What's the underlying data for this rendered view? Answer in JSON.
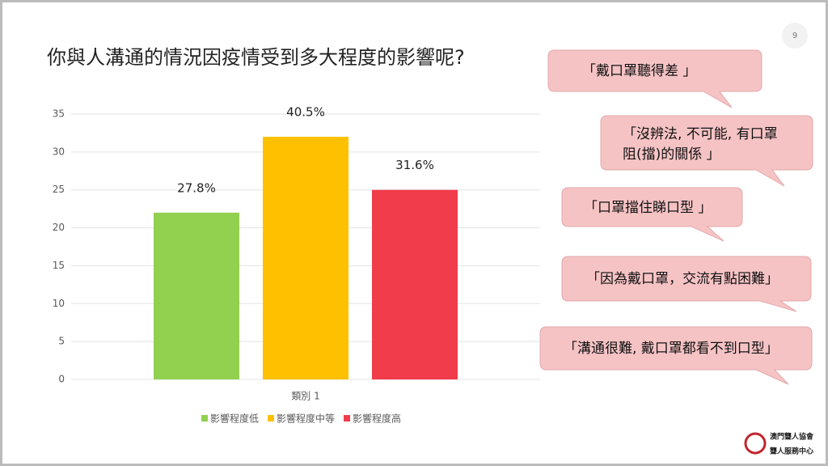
{
  "page_number": "9",
  "chart_data": {
    "type": "bar",
    "title": "你與人溝通的情況因疫情受到多大程度的影響呢?",
    "categories": [
      "類別 1"
    ],
    "series": [
      {
        "name": "影響程度低",
        "color": "#92d050",
        "values": [
          22
        ],
        "value_labels": [
          "27.8%"
        ]
      },
      {
        "name": "影響程度中等",
        "color": "#ffc000",
        "values": [
          32
        ],
        "value_labels": [
          "40.5%"
        ]
      },
      {
        "name": "影響程度高",
        "color": "#f03c4b",
        "values": [
          25
        ],
        "value_labels": [
          "31.6%"
        ]
      }
    ],
    "ylim": [
      0,
      35
    ],
    "yticks": [
      0,
      5,
      10,
      15,
      20,
      25,
      30,
      35
    ],
    "grid": true,
    "legend": "bottom"
  },
  "bubbles": [
    {
      "lines": [
        "「戴口罩聽得差 」"
      ]
    },
    {
      "lines": [
        "「沒辨法, 不可能, 有口罩",
        "阻(擋)的關係 」"
      ]
    },
    {
      "lines": [
        "「口罩擋住睇口型 」"
      ]
    },
    {
      "lines": [
        "「因為戴口罩，交流有點困難」"
      ]
    },
    {
      "lines": [
        "「溝通很難, 戴口罩都看不到口型」"
      ]
    }
  ],
  "logo": {
    "name": "澳門聾人協會",
    "center": "聾人服務中心"
  }
}
